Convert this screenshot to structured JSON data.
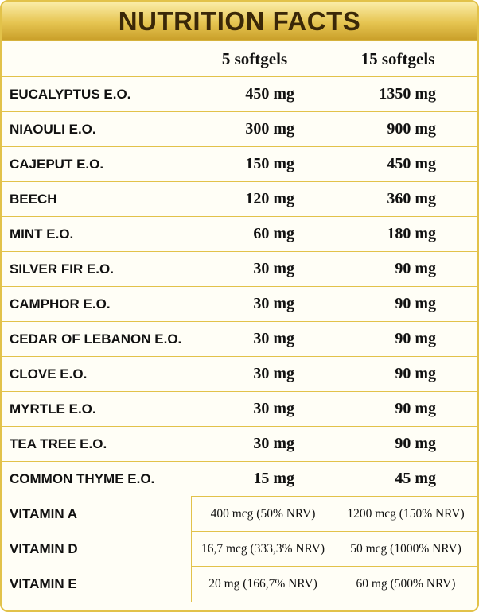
{
  "header": {
    "title": "NUTRITION FACTS"
  },
  "table": {
    "columns": [
      "5 softgels",
      "15 softgels"
    ],
    "rows": [
      [
        "EUCALYPTUS E.O.",
        "450 mg",
        "1350 mg"
      ],
      [
        "NIAOULI E.O.",
        "300 mg",
        "900 mg"
      ],
      [
        "CAJEPUT E.O.",
        "150 mg",
        "450 mg"
      ],
      [
        "BEECH",
        "120 mg",
        "360 mg"
      ],
      [
        "MINT E.O.",
        "60 mg",
        "180 mg"
      ],
      [
        "SILVER FIR E.O.",
        "30 mg",
        "90 mg"
      ],
      [
        "CAMPHOR E.O.",
        "30 mg",
        "90 mg"
      ],
      [
        "CEDAR OF LEBANON E.O.",
        "30 mg",
        "90 mg"
      ],
      [
        "CLOVE E.O.",
        "30 mg",
        "90 mg"
      ],
      [
        "MYRTLE E.O.",
        "30 mg",
        "90 mg"
      ],
      [
        "TEA TREE E.O.",
        "30 mg",
        "90 mg"
      ],
      [
        "COMMON THYME E.O.",
        "15 mg",
        "45 mg"
      ],
      [
        "VITAMIN A",
        "400 mcg (50% NRV)",
        "1200 mcg (150% NRV)"
      ],
      [
        "VITAMIN D",
        "16,7 mcg (333,3% NRV)",
        "50 mcg (1000% NRV)"
      ],
      [
        "VITAMIN E",
        "20 mg (166,7% NRV)",
        "60 mg (500% NRV)"
      ]
    ]
  }
}
